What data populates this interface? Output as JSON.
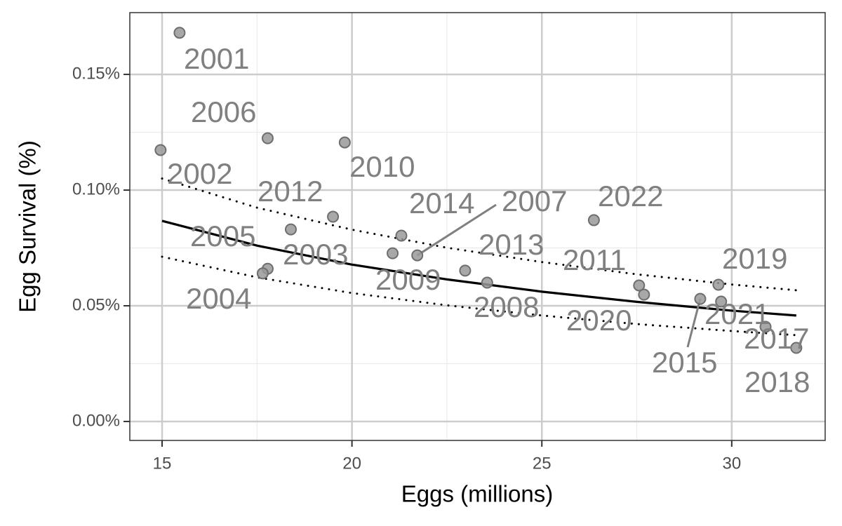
{
  "chart_data": {
    "type": "scatter",
    "xlabel": "Eggs (millions)",
    "ylabel": "Egg Survival (%)",
    "x": [
      15.46,
      14.96,
      17.78,
      19.81,
      19.5,
      18.39,
      17.78,
      17.65,
      21.3,
      21.07,
      21.72,
      22.98,
      23.56,
      26.37,
      27.56,
      27.69,
      29.17,
      29.65,
      29.72,
      30.89,
      31.7
    ],
    "y": [
      0.168,
      0.1173,
      0.1224,
      0.1206,
      0.0885,
      0.083,
      0.066,
      0.064,
      0.0803,
      0.0727,
      0.0718,
      0.0652,
      0.06,
      0.087,
      0.0588,
      0.0548,
      0.053,
      0.0591,
      0.0518,
      0.0409,
      0.0318
    ],
    "labels": [
      "2001",
      "2002",
      "2006",
      "2010",
      "2012",
      "2003",
      "2005",
      "2004",
      "2014",
      "2009",
      "2007",
      "2013",
      "2008",
      "2022",
      "2011",
      "2020",
      "2015",
      "2019",
      "2021",
      "2017",
      "2018"
    ],
    "point_color": "#999999",
    "label_color": "#808080",
    "xlim": [
      14.15,
      32.46
    ],
    "ylim": [
      -0.0082,
      0.1767
    ],
    "xticks": [
      15,
      20,
      25,
      30
    ],
    "yticks": [
      {
        "value": 0,
        "label": "0.00%"
      },
      {
        "value": 0.05,
        "label": "0.05%"
      },
      {
        "value": 0.1,
        "label": "0.10%"
      },
      {
        "value": 0.15,
        "label": "0.15%"
      }
    ],
    "xminor": [
      17.5,
      22.5,
      27.5
    ],
    "yminor": [
      0.025,
      0.075,
      0.125
    ],
    "grid": true,
    "fit": {
      "color": "#000000",
      "x": [
        15,
        17.5,
        20,
        22.5,
        25,
        27.5,
        30,
        31.7
      ],
      "values": [
        0.0867,
        0.076,
        0.0678,
        0.0614,
        0.0561,
        0.0517,
        0.0479,
        0.0458
      ],
      "upper": [
        0.105,
        0.0924,
        0.0829,
        0.0751,
        0.0689,
        0.0636,
        0.0592,
        0.0567
      ],
      "lower": [
        0.0712,
        0.0623,
        0.0555,
        0.0502,
        0.0458,
        0.0421,
        0.0391,
        0.0373
      ]
    }
  }
}
